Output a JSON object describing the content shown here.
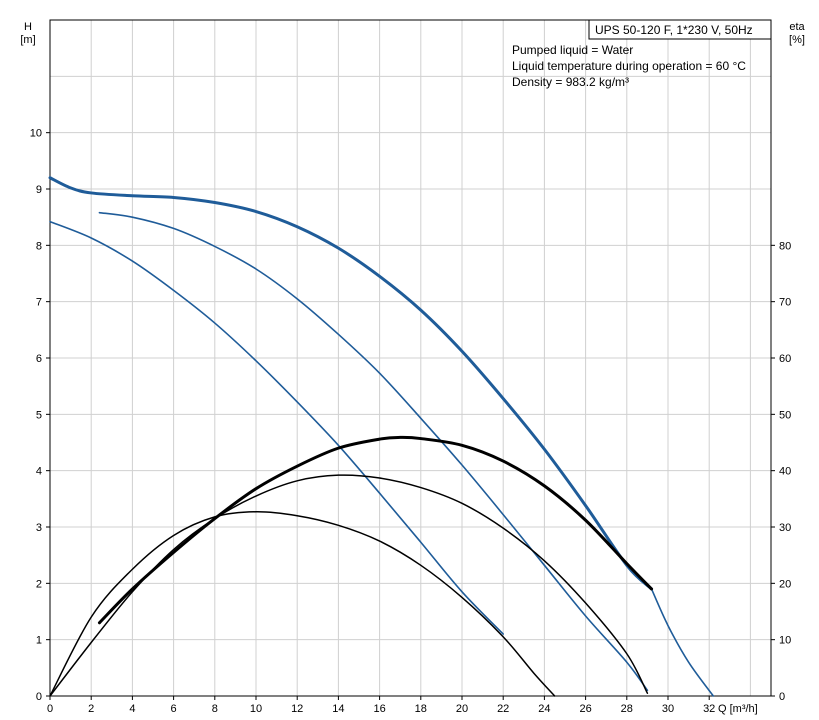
{
  "legend_box": "UPS 50-120 F, 1*230 V, 50Hz",
  "info_lines": [
    "Pumped liquid = Water",
    "Liquid temperature during operation = 60 °C",
    "Density = 983.2 kg/m³"
  ],
  "axes": {
    "left_label_line1": "H",
    "left_label_line2": "[m]",
    "right_label_line1": "eta",
    "right_label_line2": "[%]",
    "x_label": "Q [m³/h]"
  },
  "chart_data": {
    "type": "line",
    "x_ticks": [
      0,
      2,
      4,
      6,
      8,
      10,
      12,
      14,
      16,
      18,
      20,
      22,
      24,
      26,
      28,
      30,
      32
    ],
    "x_tick_labels": [
      "0",
      "2",
      "4",
      "6",
      "8",
      "10",
      "12",
      "14",
      "16",
      "18",
      "20",
      "22",
      "24",
      "26",
      "28",
      "30",
      "32"
    ],
    "y_left_ticks": [
      0,
      1,
      2,
      3,
      4,
      5,
      6,
      7,
      8,
      9,
      10
    ],
    "y_left_tick_labels": [
      "0",
      "1",
      "2",
      "3",
      "4",
      "5",
      "6",
      "7",
      "8",
      "9",
      "10"
    ],
    "y_right_ticks": [
      0,
      10,
      20,
      30,
      40,
      50,
      60,
      70,
      80
    ],
    "y_right_tick_labels": [
      "0",
      "10",
      "20",
      "30",
      "40",
      "50",
      "60",
      "70",
      "80"
    ],
    "xlim": [
      0,
      35
    ],
    "ylim_left": [
      0,
      12
    ],
    "ylim_right": [
      0,
      120
    ],
    "grid": true,
    "head_curves": [
      {
        "color": "#1f5c99",
        "bold": true,
        "points": [
          [
            0,
            9.2
          ],
          [
            1,
            9.02
          ],
          [
            2,
            8.93
          ],
          [
            4,
            8.88
          ],
          [
            6,
            8.85
          ],
          [
            8,
            8.76
          ],
          [
            10,
            8.6
          ],
          [
            12,
            8.33
          ],
          [
            14,
            7.95
          ],
          [
            16,
            7.45
          ],
          [
            18,
            6.85
          ],
          [
            20,
            6.12
          ],
          [
            22,
            5.28
          ],
          [
            24,
            4.38
          ],
          [
            26,
            3.38
          ],
          [
            28,
            2.32
          ],
          [
            29.2,
            1.9
          ]
        ]
      },
      {
        "color": "#1f5c99",
        "bold": false,
        "points": [
          [
            29.2,
            1.9
          ],
          [
            30,
            1.25
          ],
          [
            31,
            0.6
          ],
          [
            32.2,
            0
          ]
        ]
      },
      {
        "color": "#1f5c99",
        "bold": false,
        "points": [
          [
            2.4,
            8.58
          ],
          [
            4,
            8.5
          ],
          [
            6,
            8.3
          ],
          [
            8,
            7.98
          ],
          [
            10,
            7.58
          ],
          [
            12,
            7.05
          ],
          [
            14,
            6.42
          ],
          [
            16,
            5.73
          ],
          [
            18,
            4.93
          ],
          [
            20,
            4.1
          ],
          [
            22,
            3.22
          ],
          [
            24,
            2.32
          ],
          [
            26,
            1.42
          ],
          [
            28,
            0.6
          ],
          [
            29,
            0.1
          ]
        ]
      },
      {
        "color": "#1f5c99",
        "bold": false,
        "points": [
          [
            0,
            8.42
          ],
          [
            2,
            8.13
          ],
          [
            4,
            7.72
          ],
          [
            6,
            7.2
          ],
          [
            8,
            6.62
          ],
          [
            10,
            5.95
          ],
          [
            12,
            5.22
          ],
          [
            14,
            4.45
          ],
          [
            16,
            3.6
          ],
          [
            18,
            2.73
          ],
          [
            20,
            1.85
          ],
          [
            22,
            1.1
          ]
        ]
      }
    ],
    "efficiency_curves": [
      {
        "color": "#000000",
        "bold": true,
        "points": [
          [
            2.4,
            13
          ],
          [
            4,
            19
          ],
          [
            6,
            25.5
          ],
          [
            8,
            31.5
          ],
          [
            10,
            36.8
          ],
          [
            12,
            40.8
          ],
          [
            14,
            44
          ],
          [
            16,
            45.6
          ],
          [
            17,
            45.9
          ],
          [
            18,
            45.7
          ],
          [
            20,
            44.5
          ],
          [
            22,
            41.7
          ],
          [
            24,
            37.3
          ],
          [
            26,
            31.2
          ],
          [
            28,
            23.5
          ],
          [
            29.2,
            19
          ]
        ]
      },
      {
        "color": "#000000",
        "bold": false,
        "points": [
          [
            0,
            0
          ],
          [
            2,
            9.5
          ],
          [
            4,
            18.5
          ],
          [
            6,
            26
          ],
          [
            8,
            31.5
          ],
          [
            10,
            35.5
          ],
          [
            12,
            38.2
          ],
          [
            14,
            39.2
          ],
          [
            16,
            38.7
          ],
          [
            18,
            37
          ],
          [
            20,
            34.2
          ],
          [
            22,
            29.8
          ],
          [
            24,
            24
          ],
          [
            26,
            16.5
          ],
          [
            28,
            7.5
          ],
          [
            29,
            0.5
          ]
        ]
      },
      {
        "color": "#000000",
        "bold": false,
        "points": [
          [
            0,
            0
          ],
          [
            2,
            14
          ],
          [
            4,
            22.5
          ],
          [
            6,
            28.5
          ],
          [
            8,
            31.8
          ],
          [
            10,
            32.7
          ],
          [
            12,
            32
          ],
          [
            14,
            30.3
          ],
          [
            16,
            27.5
          ],
          [
            18,
            23.2
          ],
          [
            20,
            17.5
          ],
          [
            22,
            10.5
          ],
          [
            23.5,
            4
          ],
          [
            24.5,
            0
          ]
        ]
      }
    ]
  }
}
